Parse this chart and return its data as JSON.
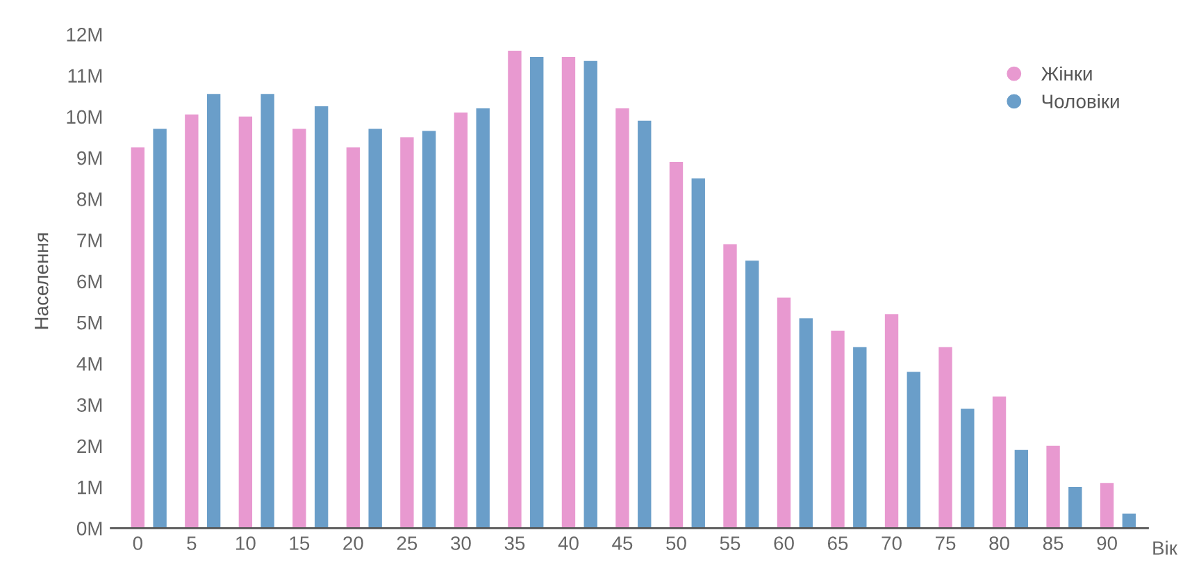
{
  "chart_data": {
    "type": "bar",
    "xlabel": "Вік",
    "ylabel": "Населення",
    "categories": [
      "0",
      "5",
      "10",
      "15",
      "20",
      "25",
      "30",
      "35",
      "40",
      "45",
      "50",
      "55",
      "60",
      "65",
      "70",
      "75",
      "80",
      "85",
      "90"
    ],
    "series": [
      {
        "name": "Жінки",
        "color": "#e899d0",
        "values": [
          9.25,
          10.05,
          10.0,
          9.7,
          9.25,
          9.5,
          10.1,
          11.6,
          11.45,
          10.2,
          8.9,
          6.9,
          5.6,
          4.8,
          5.2,
          4.4,
          3.2,
          2.0,
          1.1
        ]
      },
      {
        "name": "Чоловіки",
        "color": "#6a9ec9",
        "values": [
          9.7,
          10.55,
          10.55,
          10.25,
          9.7,
          9.65,
          10.2,
          11.45,
          11.35,
          9.9,
          8.5,
          6.5,
          5.1,
          4.4,
          3.8,
          2.9,
          1.9,
          1.0,
          0.35
        ]
      }
    ],
    "ylim": [
      0,
      12
    ],
    "yticks": [
      {
        "value": 0,
        "label": "0M"
      },
      {
        "value": 1,
        "label": "1M"
      },
      {
        "value": 2,
        "label": "2M"
      },
      {
        "value": 3,
        "label": "3M"
      },
      {
        "value": 4,
        "label": "4M"
      },
      {
        "value": 5,
        "label": "5M"
      },
      {
        "value": 6,
        "label": "6M"
      },
      {
        "value": 7,
        "label": "7M"
      },
      {
        "value": 8,
        "label": "8M"
      },
      {
        "value": 9,
        "label": "9M"
      },
      {
        "value": 10,
        "label": "10M"
      },
      {
        "value": 11,
        "label": "11M"
      },
      {
        "value": 12,
        "label": "12M"
      }
    ],
    "grid": false,
    "legend": "top right"
  }
}
